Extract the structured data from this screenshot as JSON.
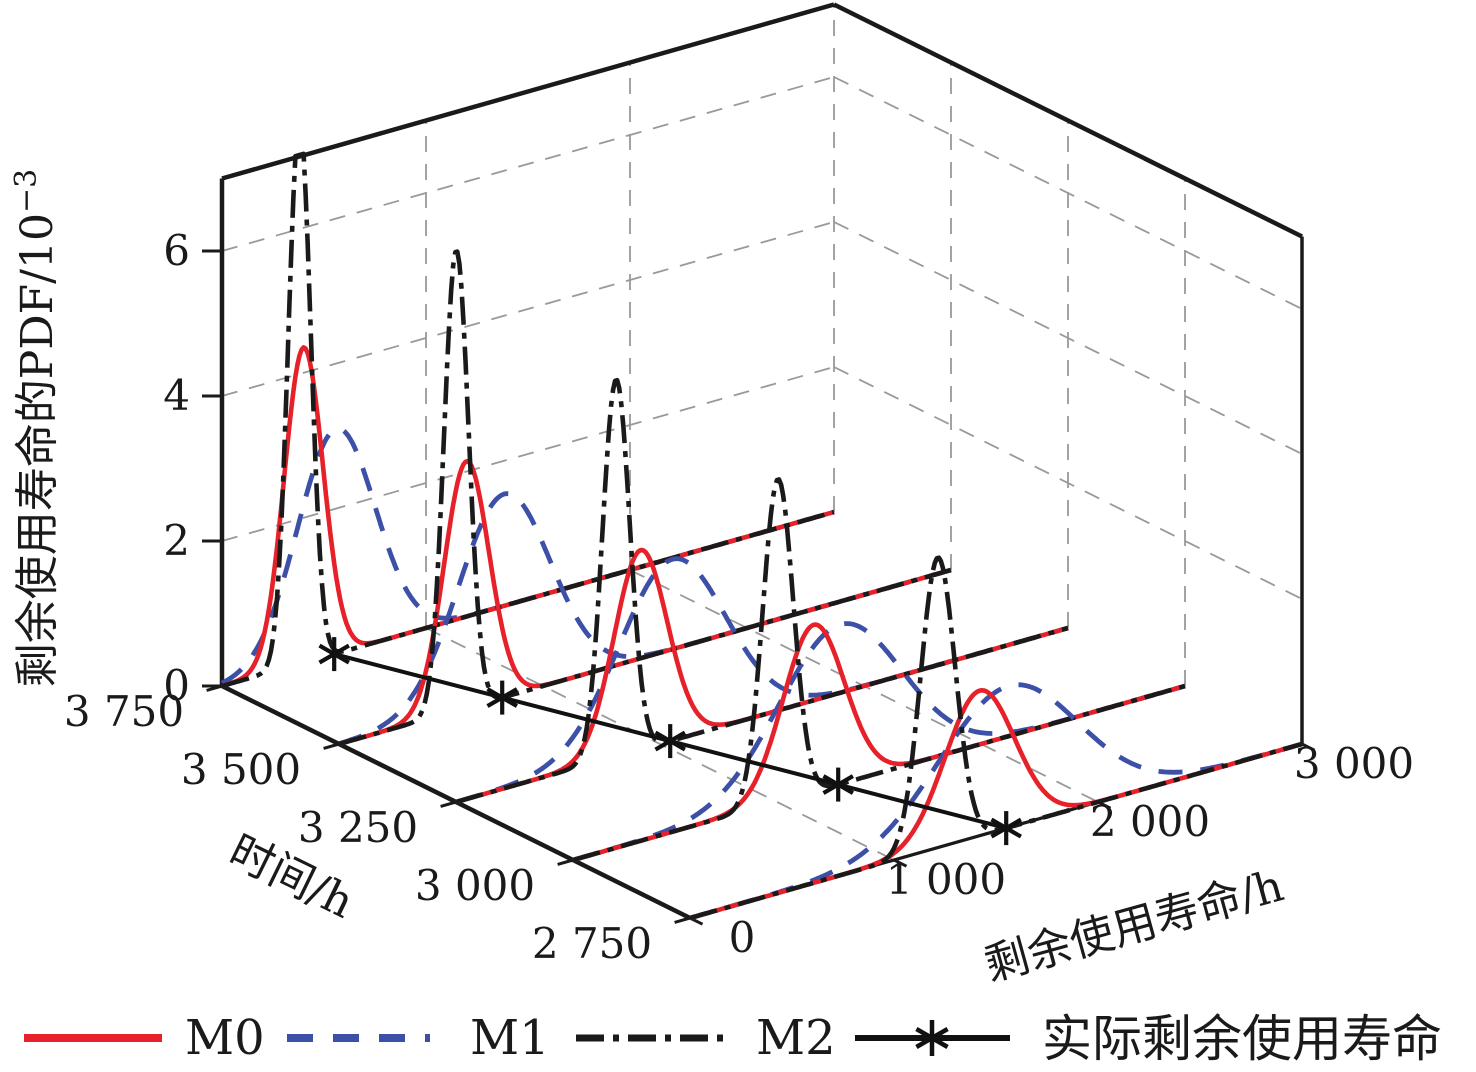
{
  "chart_data": {
    "type": "line",
    "subtype": "3d-waterfall-pdf",
    "title": "",
    "colors": {
      "M0": "#e62129",
      "M1": "#3c50a8",
      "M2": "#1a1a1a",
      "actual": "#111111",
      "grid": "#999999",
      "axis": "#1a1a1a"
    },
    "pdf_axis": {
      "label_main": "剩余使用寿命的PDF/10",
      "label_sup": "−3",
      "ticks": [
        "0",
        "2",
        "4",
        "6"
      ],
      "tick_values": [
        0,
        2,
        4,
        6
      ],
      "max": 7
    },
    "time_axis": {
      "label": "时间/h",
      "ticks": [
        "3 750",
        "3 500",
        "3 250",
        "3 000",
        "2 750"
      ],
      "tick_values": [
        3750,
        3500,
        3250,
        3000,
        2750
      ],
      "range": [
        2750,
        3750
      ]
    },
    "rul_axis": {
      "label": "剩余使用寿命/h",
      "ticks": [
        "0",
        "1 000",
        "2 000",
        "3 000"
      ],
      "tick_values": [
        0,
        1000,
        2000,
        3000
      ],
      "range": [
        0,
        3000
      ]
    },
    "grid": {
      "pdf_levels": [
        2,
        4,
        6
      ],
      "rul_wall_lines": [
        1000,
        2000,
        3000
      ],
      "time_wall_lines": [
        3500,
        3250,
        3000
      ],
      "rul_floor_lines": [
        1000,
        2000
      ]
    },
    "slices": [
      {
        "time": 3750,
        "actual_rul": 550,
        "M0": {
          "center": 400,
          "height": 4.35,
          "sigma": 95
        },
        "M1": {
          "center": 560,
          "height": 3.1,
          "sigma": 190
        },
        "M2": {
          "center": 380,
          "height": 7.5,
          "sigma": 55
        }
      },
      {
        "time": 3500,
        "actual_rul": 800,
        "M0": {
          "center": 625,
          "height": 3.4,
          "sigma": 110
        },
        "M1": {
          "center": 810,
          "height": 2.8,
          "sigma": 225
        },
        "M2": {
          "center": 575,
          "height": 6.35,
          "sigma": 60
        }
      },
      {
        "time": 3250,
        "actual_rul": 1050,
        "M0": {
          "center": 905,
          "height": 2.75,
          "sigma": 130
        },
        "M1": {
          "center": 1060,
          "height": 2.5,
          "sigma": 260
        },
        "M2": {
          "center": 785,
          "height": 5.2,
          "sigma": 67
        }
      },
      {
        "time": 3000,
        "actual_rul": 1300,
        "M0": {
          "center": 1180,
          "height": 2.3,
          "sigma": 150
        },
        "M1": {
          "center": 1310,
          "height": 2.2,
          "sigma": 300
        },
        "M2": {
          "center": 1005,
          "height": 4.45,
          "sigma": 75
        }
      },
      {
        "time": 2750,
        "actual_rul": 1550,
        "M0": {
          "center": 1420,
          "height": 2.0,
          "sigma": 170
        },
        "M1": {
          "center": 1560,
          "height": 1.95,
          "sigma": 340
        },
        "M2": {
          "center": 1215,
          "height": 4.0,
          "sigma": 85
        }
      }
    ],
    "actual_line": {
      "points": [
        [
          3750,
          550
        ],
        [
          3500,
          800
        ],
        [
          3250,
          1050
        ],
        [
          3000,
          1300
        ],
        [
          2750,
          1550
        ]
      ]
    },
    "legend": [
      {
        "key": "M0",
        "label": "M0",
        "style": "solid",
        "color": "#e62129"
      },
      {
        "key": "M1",
        "label": "M1",
        "style": "dashed",
        "color": "#3c50a8"
      },
      {
        "key": "M2",
        "label": "M2",
        "style": "dashdot",
        "color": "#1a1a1a"
      },
      {
        "key": "actual",
        "label": "实际剩余使用寿命",
        "style": "solid-asterisk",
        "color": "#111111"
      }
    ]
  }
}
